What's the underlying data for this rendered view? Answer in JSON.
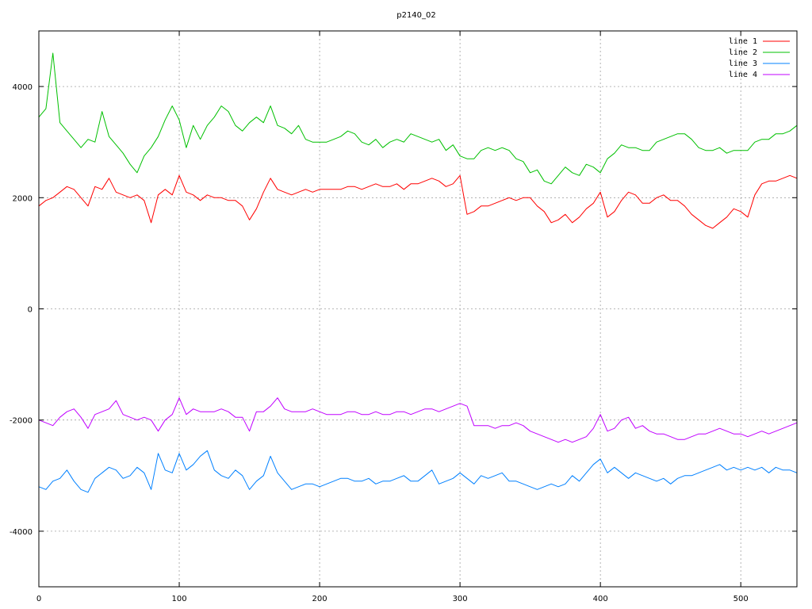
{
  "chart_data": {
    "type": "line",
    "title": "p2140_02",
    "xlabel": "",
    "ylabel": "",
    "xlim": [
      0,
      540
    ],
    "ylim": [
      -5000,
      5000
    ],
    "x_ticks": [
      0,
      100,
      200,
      300,
      400,
      500
    ],
    "y_ticks": [
      -4000,
      -2000,
      0,
      2000,
      4000
    ],
    "x_tick_labels": [
      "0",
      "100",
      "200",
      "300",
      "400",
      "500"
    ],
    "y_tick_labels": [
      "-4000",
      "-2000",
      "0",
      "2000",
      "4000"
    ],
    "grid": true,
    "legend_position": "top-right",
    "x": [
      0,
      5,
      10,
      15,
      20,
      25,
      30,
      35,
      40,
      45,
      50,
      55,
      60,
      65,
      70,
      75,
      80,
      85,
      90,
      95,
      100,
      105,
      110,
      115,
      120,
      125,
      130,
      135,
      140,
      145,
      150,
      155,
      160,
      165,
      170,
      175,
      180,
      185,
      190,
      195,
      200,
      205,
      210,
      215,
      220,
      225,
      230,
      235,
      240,
      245,
      250,
      255,
      260,
      265,
      270,
      275,
      280,
      285,
      290,
      295,
      300,
      305,
      310,
      315,
      320,
      325,
      330,
      335,
      340,
      345,
      350,
      355,
      360,
      365,
      370,
      375,
      380,
      385,
      390,
      395,
      400,
      405,
      410,
      415,
      420,
      425,
      430,
      435,
      440,
      445,
      450,
      455,
      460,
      465,
      470,
      475,
      480,
      485,
      490,
      495,
      500,
      505,
      510,
      515,
      520,
      525,
      530,
      535,
      540
    ],
    "series": [
      {
        "name": "line 1",
        "color": "#ff0000",
        "values": [
          1850,
          1950,
          2000,
          2100,
          2200,
          2150,
          2000,
          1850,
          2200,
          2150,
          2350,
          2100,
          2050,
          2000,
          2050,
          1950,
          1550,
          2050,
          2150,
          2050,
          2400,
          2100,
          2050,
          1950,
          2050,
          2000,
          2000,
          1950,
          1950,
          1850,
          1600,
          1800,
          2100,
          2350,
          2150,
          2100,
          2050,
          2100,
          2150,
          2100,
          2150,
          2150,
          2150,
          2150,
          2200,
          2200,
          2150,
          2200,
          2250,
          2200,
          2200,
          2250,
          2150,
          2250,
          2250,
          2300,
          2350,
          2300,
          2200,
          2250,
          2400,
          1700,
          1750,
          1850,
          1850,
          1900,
          1950,
          2000,
          1950,
          2000,
          2000,
          1850,
          1750,
          1550,
          1600,
          1700,
          1550,
          1650,
          1800,
          1900,
          2100,
          1650,
          1750,
          1950,
          2100,
          2050,
          1900,
          1900,
          2000,
          2050,
          1950,
          1950,
          1850,
          1700,
          1600,
          1500,
          1450,
          1550,
          1650,
          1800,
          1750,
          1650,
          2050,
          2250,
          2300,
          2300,
          2350,
          2400,
          2350
        ]
      },
      {
        "name": "line 2",
        "color": "#00c000",
        "values": [
          3450,
          3600,
          4600,
          3350,
          3200,
          3050,
          2900,
          3050,
          3000,
          3550,
          3100,
          2950,
          2800,
          2600,
          2450,
          2750,
          2900,
          3100,
          3400,
          3650,
          3400,
          2900,
          3300,
          3050,
          3300,
          3450,
          3650,
          3550,
          3300,
          3200,
          3350,
          3450,
          3350,
          3650,
          3300,
          3250,
          3150,
          3300,
          3050,
          3000,
          3000,
          3000,
          3050,
          3100,
          3200,
          3150,
          3000,
          2950,
          3050,
          2900,
          3000,
          3050,
          3000,
          3150,
          3100,
          3050,
          3000,
          3050,
          2850,
          2950,
          2750,
          2700,
          2700,
          2850,
          2900,
          2850,
          2900,
          2850,
          2700,
          2650,
          2450,
          2500,
          2300,
          2250,
          2400,
          2550,
          2450,
          2400,
          2600,
          2550,
          2450,
          2700,
          2800,
          2950,
          2900,
          2900,
          2850,
          2850,
          3000,
          3050,
          3100,
          3150,
          3150,
          3050,
          2900,
          2850,
          2850,
          2900,
          2800,
          2850,
          2850,
          2850,
          3000,
          3050,
          3050,
          3150,
          3150,
          3200,
          3300
        ]
      },
      {
        "name": "line 3",
        "color": "#0080ff",
        "values": [
          -3200,
          -3250,
          -3100,
          -3050,
          -2900,
          -3100,
          -3250,
          -3300,
          -3050,
          -2950,
          -2850,
          -2900,
          -3050,
          -3000,
          -2850,
          -2950,
          -3250,
          -2600,
          -2900,
          -2950,
          -2600,
          -2900,
          -2800,
          -2650,
          -2550,
          -2900,
          -3000,
          -3050,
          -2900,
          -3000,
          -3250,
          -3100,
          -3000,
          -2650,
          -2950,
          -3100,
          -3250,
          -3200,
          -3150,
          -3150,
          -3200,
          -3150,
          -3100,
          -3050,
          -3050,
          -3100,
          -3100,
          -3050,
          -3150,
          -3100,
          -3100,
          -3050,
          -3000,
          -3100,
          -3100,
          -3000,
          -2900,
          -3150,
          -3100,
          -3050,
          -2950,
          -3050,
          -3150,
          -3000,
          -3050,
          -3000,
          -2950,
          -3100,
          -3100,
          -3150,
          -3200,
          -3250,
          -3200,
          -3150,
          -3200,
          -3150,
          -3000,
          -3100,
          -2950,
          -2800,
          -2700,
          -2950,
          -2850,
          -2950,
          -3050,
          -2950,
          -3000,
          -3050,
          -3100,
          -3050,
          -3150,
          -3050,
          -3000,
          -3000,
          -2950,
          -2900,
          -2850,
          -2800,
          -2900,
          -2850,
          -2900,
          -2850,
          -2900,
          -2850,
          -2950,
          -2850,
          -2900,
          -2900,
          -2950
        ]
      },
      {
        "name": "line 4",
        "color": "#c000ff",
        "values": [
          -2000,
          -2050,
          -2100,
          -1950,
          -1850,
          -1800,
          -1950,
          -2150,
          -1900,
          -1850,
          -1800,
          -1650,
          -1900,
          -1950,
          -2000,
          -1950,
          -2000,
          -2200,
          -2000,
          -1900,
          -1600,
          -1900,
          -1800,
          -1850,
          -1850,
          -1850,
          -1800,
          -1850,
          -1950,
          -1950,
          -2200,
          -1850,
          -1850,
          -1750,
          -1600,
          -1800,
          -1850,
          -1850,
          -1850,
          -1800,
          -1850,
          -1900,
          -1900,
          -1900,
          -1850,
          -1850,
          -1900,
          -1900,
          -1850,
          -1900,
          -1900,
          -1850,
          -1850,
          -1900,
          -1850,
          -1800,
          -1800,
          -1850,
          -1800,
          -1750,
          -1700,
          -1750,
          -2100,
          -2100,
          -2100,
          -2150,
          -2100,
          -2100,
          -2050,
          -2100,
          -2200,
          -2250,
          -2300,
          -2350,
          -2400,
          -2350,
          -2400,
          -2350,
          -2300,
          -2150,
          -1900,
          -2200,
          -2150,
          -2000,
          -1950,
          -2150,
          -2100,
          -2200,
          -2250,
          -2250,
          -2300,
          -2350,
          -2350,
          -2300,
          -2250,
          -2250,
          -2200,
          -2150,
          -2200,
          -2250,
          -2250,
          -2300,
          -2250,
          -2200,
          -2250,
          -2200,
          -2150,
          -2100,
          -2050
        ]
      }
    ]
  }
}
